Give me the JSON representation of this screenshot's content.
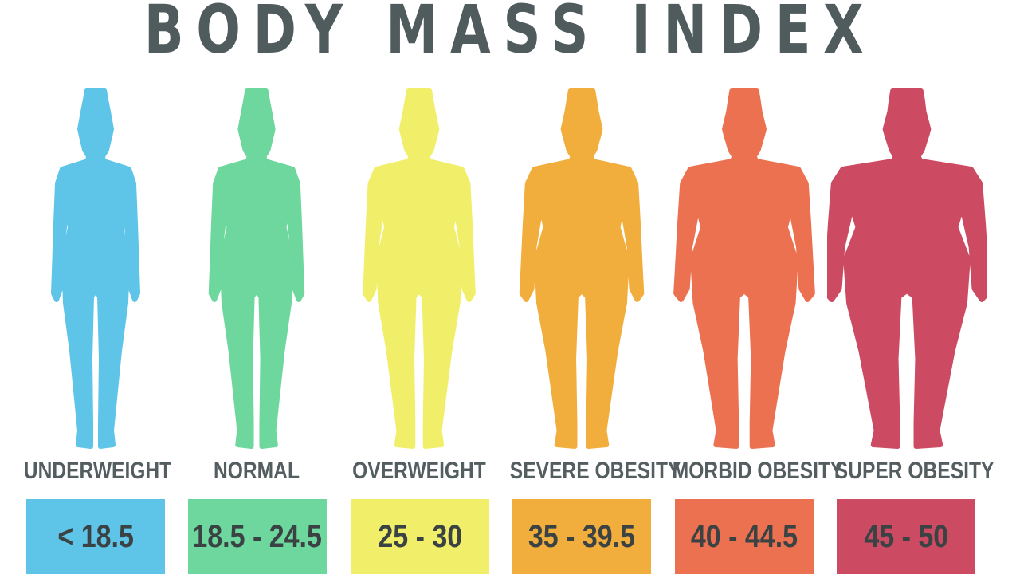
{
  "title": "BODY MASS INDEX",
  "categories": [
    {
      "label": "UNDERWEIGHT",
      "range": "< 18.5",
      "color": "#5ec4e8",
      "icon": "slim-woman-silhouette-icon"
    },
    {
      "label": "NORMAL",
      "range": "18.5 - 24.5",
      "color": "#6dd79e",
      "icon": "normal-woman-silhouette-icon"
    },
    {
      "label": "OVERWEIGHT",
      "range": "25 - 30",
      "color": "#f1ef6a",
      "icon": "overweight-woman-silhouette-icon"
    },
    {
      "label": "SEVERE OBESITY",
      "range": "35 - 39.5",
      "color": "#f2ae3c",
      "icon": "severe-obese-woman-silhouette-icon"
    },
    {
      "label": "MORBID OBESITY",
      "range": "40 - 44.5",
      "color": "#ec7150",
      "icon": "morbid-obese-woman-silhouette-icon"
    },
    {
      "label": "SUPER OBESITY",
      "range": "45 - 50",
      "color": "#cc4b62",
      "icon": "super-obese-woman-silhouette-icon"
    }
  ]
}
